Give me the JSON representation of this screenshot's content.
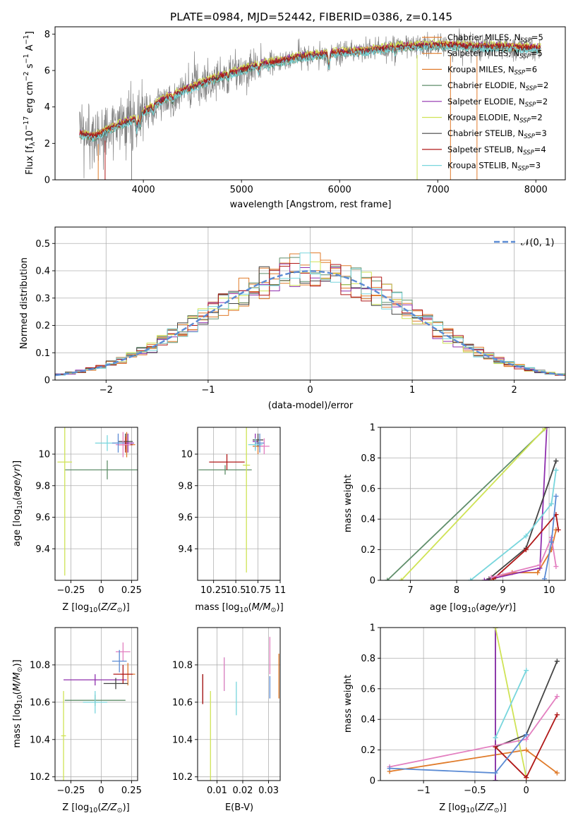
{
  "title": "PLATE=0984, MJD=52442, FIBERID=0386, z=0.145",
  "colors": {
    "data": "#808080",
    "models": [
      "#e07b2a",
      "#e07b2a",
      "#e07b2a",
      "#5f8e6a",
      "#8f2fae",
      "#cfe355",
      "#444444",
      "#b01818",
      "#78d6dd"
    ],
    "normal": "#5b8bd4",
    "params": [
      "#e07b2a",
      "#5f8e6a",
      "#8f2fae",
      "#cfe355",
      "#444444",
      "#b01818",
      "#78d6dd",
      "#e37fc0",
      "#5b8bd4"
    ]
  },
  "chart_data": [
    {
      "id": "spectrum",
      "type": "line",
      "xlabel": "wavelength [Angstrom, rest frame]",
      "ylabel": "Flux [f_λ10^-17 erg cm^-2 s^-1 A^-1]",
      "xlim": [
        3100,
        8300
      ],
      "ylim": [
        0,
        8.4
      ],
      "xticks": [
        4000,
        5000,
        6000,
        7000,
        8000
      ],
      "yticks": [
        0,
        2,
        4,
        6,
        8
      ],
      "grid": false,
      "legend_position": "right",
      "legend": [
        "Chabrier MILES, N_SSP=5",
        "Salpeter MILES, N_SSP=5",
        "Kroupa MILES, N_SSP=6",
        "Chabrier ELODIE, N_SSP=2",
        "Salpeter ELODIE, N_SSP=2",
        "Kroupa ELODIE, N_SSP=2",
        "Chabrier STELIB, N_SSP=3",
        "Salpeter STELIB, N_SSP=4",
        "Kroupa STELIB, N_SSP=3"
      ],
      "model_continuum": {
        "x": [
          3350,
          3500,
          3700,
          3900,
          4000,
          4200,
          4400,
          4600,
          4800,
          5000,
          5200,
          5400,
          5600,
          5800,
          6000,
          6200,
          6400,
          6600,
          6800,
          7000,
          7200,
          7400,
          7600,
          7800,
          8050
        ],
        "y": [
          2.5,
          2.35,
          2.9,
          3.3,
          3.7,
          4.4,
          4.85,
          5.3,
          5.7,
          6.0,
          6.35,
          6.5,
          6.75,
          6.85,
          7.0,
          7.05,
          7.15,
          7.3,
          7.35,
          7.4,
          7.35,
          7.3,
          7.3,
          7.25,
          7.2
        ]
      }
    },
    {
      "id": "residuals",
      "type": "line",
      "xlabel": "(data-model)/error",
      "ylabel": "Normed distribution",
      "xlim": [
        -2.5,
        2.5
      ],
      "ylim": [
        0,
        0.56
      ],
      "xticks": [
        -2,
        -1,
        0,
        1,
        2
      ],
      "yticks": [
        0.0,
        0.1,
        0.2,
        0.3,
        0.4,
        0.5
      ],
      "grid": true,
      "legend_position": "top-right",
      "legend": [
        "𝒩(0, 1)"
      ],
      "normal": {
        "mean": 0,
        "sigma": 1
      }
    },
    {
      "id": "age_vs_Z",
      "type": "scatter",
      "xlabel": "Z [log10(Z/Z☉)]",
      "ylabel": "age  [log10(age/yr)]",
      "xlim": [
        -0.38,
        0.3
      ],
      "ylim": [
        9.2,
        10.17
      ],
      "xticks": [
        -0.25,
        0.0,
        0.25
      ],
      "yticks": [
        9.4,
        9.6,
        9.8,
        10.0
      ],
      "grid": true,
      "points": [
        {
          "x": 0.21,
          "y": 10.06,
          "xerr": 0.07,
          "yerr": 0.08,
          "series": 0
        },
        {
          "x": 0.05,
          "y": 9.9,
          "xerr": 0.35,
          "yerr": 0.06,
          "series": 1
        },
        {
          "x": 0.22,
          "y": 10.07,
          "xerr": 0.05,
          "yerr": 0.06,
          "series": 2
        },
        {
          "x": -0.3,
          "y": 9.95,
          "xerr": 0.06,
          "yerr": 0.72,
          "series": 3
        },
        {
          "x": 0.2,
          "y": 10.08,
          "xerr": 0.06,
          "yerr": 0.05,
          "series": 4
        },
        {
          "x": 0.2,
          "y": 10.06,
          "xerr": 0.06,
          "yerr": 0.05,
          "series": 5
        },
        {
          "x": 0.05,
          "y": 10.07,
          "xerr": 0.1,
          "yerr": 0.05,
          "series": 6
        },
        {
          "x": 0.18,
          "y": 10.06,
          "xerr": 0.06,
          "yerr": 0.08,
          "series": 7
        },
        {
          "x": 0.14,
          "y": 10.07,
          "xerr": 0.05,
          "yerr": 0.06,
          "series": 8
        }
      ]
    },
    {
      "id": "age_vs_mass",
      "type": "scatter",
      "xlabel": "mass [log10(M/M☉)]",
      "ylabel": "",
      "xlim": [
        10.07,
        11.0
      ],
      "ylim": [
        9.2,
        10.17
      ],
      "xticks": [
        10.25,
        10.5,
        10.75,
        11.0
      ],
      "yticks": [
        9.4,
        9.6,
        9.8,
        10.0
      ],
      "grid": true,
      "points": [
        {
          "x": 10.75,
          "y": 10.05,
          "xerr": 0.06,
          "yerr": 0.05,
          "series": 0
        },
        {
          "x": 10.38,
          "y": 9.9,
          "xerr": 0.3,
          "yerr": 0.03,
          "series": 1
        },
        {
          "x": 10.72,
          "y": 10.08,
          "xerr": 0.03,
          "yerr": 0.05,
          "series": 2
        },
        {
          "x": 10.62,
          "y": 9.93,
          "xerr": 0.04,
          "yerr": 0.68,
          "series": 3
        },
        {
          "x": 10.75,
          "y": 10.09,
          "xerr": 0.06,
          "yerr": 0.04,
          "series": 4
        },
        {
          "x": 10.4,
          "y": 9.95,
          "xerr": 0.2,
          "yerr": 0.05,
          "series": 5
        },
        {
          "x": 10.72,
          "y": 10.06,
          "xerr": 0.08,
          "yerr": 0.04,
          "series": 6
        },
        {
          "x": 10.82,
          "y": 10.05,
          "xerr": 0.06,
          "yerr": 0.05,
          "series": 7
        },
        {
          "x": 10.77,
          "y": 10.07,
          "xerr": 0.05,
          "yerr": 0.06,
          "series": 8
        }
      ]
    },
    {
      "id": "weight_vs_age",
      "type": "line",
      "xlabel": "age  [log10(age/yr)]",
      "ylabel": "mass weight",
      "xlim": [
        6.35,
        10.35
      ],
      "ylim": [
        0,
        1
      ],
      "xticks": [
        7,
        8,
        9,
        10
      ],
      "yticks": [
        0.0,
        0.2,
        0.4,
        0.6,
        0.8,
        1.0
      ],
      "grid": true,
      "series": [
        {
          "x": [
            8.7,
            9.2,
            9.75,
            10.05,
            10.15
          ],
          "y": [
            0.0,
            0.05,
            0.05,
            0.2,
            0.33
          ]
        },
        {
          "x": [
            6.5,
            9.95
          ],
          "y": [
            0.0,
            1.0
          ]
        },
        {
          "x": [
            8.6,
            9.8,
            9.95
          ],
          "y": [
            0.0,
            0.08,
            1.0
          ]
        },
        {
          "x": [
            6.8,
            9.9
          ],
          "y": [
            0.0,
            0.99
          ]
        },
        {
          "x": [
            8.7,
            9.5,
            10.15
          ],
          "y": [
            0.01,
            0.21,
            0.78
          ]
        },
        {
          "x": [
            8.8,
            9.5,
            10.15,
            10.2
          ],
          "y": [
            0.01,
            0.2,
            0.43,
            0.33
          ]
        },
        {
          "x": [
            8.3,
            9.5,
            10.05,
            10.15
          ],
          "y": [
            0.0,
            0.29,
            0.5,
            0.72
          ]
        },
        {
          "x": [
            8.75,
            9.8,
            10.05,
            10.15
          ],
          "y": [
            0.02,
            0.1,
            0.28,
            0.09
          ]
        },
        {
          "x": [
            9.9,
            10.05,
            10.15
          ],
          "y": [
            0.01,
            0.25,
            0.55
          ]
        }
      ]
    },
    {
      "id": "mass_vs_Z",
      "type": "scatter",
      "xlabel": "Z [log10(Z/Z☉)]",
      "ylabel": "mass [log10(M/M☉)]",
      "xlim": [
        -0.38,
        0.3
      ],
      "ylim": [
        10.18,
        11.0
      ],
      "xticks": [
        -0.25,
        0.0,
        0.25
      ],
      "yticks": [
        10.2,
        10.4,
        10.6,
        10.8
      ],
      "grid": true,
      "points": [
        {
          "x": 0.22,
          "y": 10.75,
          "xerr": 0.06,
          "yerr": 0.06,
          "series": 0
        },
        {
          "x": -0.05,
          "y": 10.61,
          "xerr": 0.25,
          "yerr": 0.03,
          "series": 1
        },
        {
          "x": -0.05,
          "y": 10.72,
          "xerr": 0.26,
          "yerr": 0.03,
          "series": 2
        },
        {
          "x": -0.31,
          "y": 10.42,
          "xerr": 0.02,
          "yerr": 0.24,
          "series": 3
        },
        {
          "x": 0.12,
          "y": 10.7,
          "xerr": 0.1,
          "yerr": 0.03,
          "series": 4
        },
        {
          "x": 0.18,
          "y": 10.75,
          "xerr": 0.08,
          "yerr": 0.05,
          "series": 5
        },
        {
          "x": -0.05,
          "y": 10.6,
          "xerr": 0.1,
          "yerr": 0.06,
          "series": 6
        },
        {
          "x": 0.18,
          "y": 10.87,
          "xerr": 0.06,
          "yerr": 0.05,
          "series": 7
        },
        {
          "x": 0.15,
          "y": 10.82,
          "xerr": 0.06,
          "yerr": 0.06,
          "series": 8
        }
      ]
    },
    {
      "id": "mass_vs_ebv",
      "type": "scatter",
      "xlabel": "E(B-V)",
      "ylabel": "",
      "xlim": [
        0.0025,
        0.0345
      ],
      "ylim": [
        10.18,
        11.0
      ],
      "xticks": [
        0.01,
        0.02,
        0.03
      ],
      "xticklabels": [
        "0.01",
        "0.02",
        "0.03"
      ],
      "yticks": [
        10.2,
        10.4,
        10.6,
        10.8
      ],
      "grid": true,
      "points": [
        {
          "x": 0.0045,
          "y": 10.67,
          "yerr": 0.08,
          "series": 4
        },
        {
          "x": 0.0045,
          "y": 10.67,
          "yerr": 0.08,
          "series": 5
        },
        {
          "x": 0.0075,
          "y": 10.42,
          "yerr": 0.24,
          "series": 3
        },
        {
          "x": 0.0128,
          "y": 10.75,
          "yerr": 0.09,
          "series": 6
        },
        {
          "x": 0.0128,
          "y": 10.75,
          "yerr": 0.09,
          "series": 7
        },
        {
          "x": 0.0175,
          "y": 10.62,
          "yerr": 0.09,
          "series": 6
        },
        {
          "x": 0.0305,
          "y": 10.85,
          "yerr": 0.1,
          "series": 7
        },
        {
          "x": 0.0305,
          "y": 10.68,
          "yerr": 0.06,
          "series": 8
        },
        {
          "x": 0.034,
          "y": 10.74,
          "yerr": 0.12,
          "series": 0
        }
      ]
    },
    {
      "id": "weight_vs_Z",
      "type": "line",
      "xlabel": "Z [log10(Z/Z☉)]",
      "ylabel": "mass weight",
      "xlim": [
        -1.42,
        0.38
      ],
      "ylim": [
        0,
        1
      ],
      "xticks": [
        -1.0,
        -0.5,
        0.0
      ],
      "yticks": [
        0.0,
        0.2,
        0.4,
        0.6,
        0.8,
        1.0
      ],
      "grid": true,
      "series": [
        {
          "x": [
            -1.33,
            0.0,
            0.3
          ],
          "y": [
            0.06,
            0.2,
            0.05
          ]
        },
        {
          "x": [
            -0.3,
            -0.3
          ],
          "y": [
            0.0,
            1.0
          ]
        },
        {
          "x": [
            -0.3,
            -0.3
          ],
          "y": [
            0.0,
            1.0
          ]
        },
        {
          "x": [
            -0.3,
            0.0
          ],
          "y": [
            1.0,
            0.02
          ]
        },
        {
          "x": [
            -0.3,
            0.0,
            0.3
          ],
          "y": [
            0.22,
            0.3,
            0.78
          ]
        },
        {
          "x": [
            -0.3,
            0.0,
            0.3
          ],
          "y": [
            0.22,
            0.02,
            0.43
          ]
        },
        {
          "x": [
            -0.3,
            0.0
          ],
          "y": [
            0.28,
            0.72
          ]
        },
        {
          "x": [
            -1.33,
            0.0,
            0.3
          ],
          "y": [
            0.09,
            0.27,
            0.55
          ]
        },
        {
          "x": [
            -1.33,
            -0.3,
            0.0
          ],
          "y": [
            0.08,
            0.05,
            0.3
          ]
        }
      ]
    }
  ]
}
